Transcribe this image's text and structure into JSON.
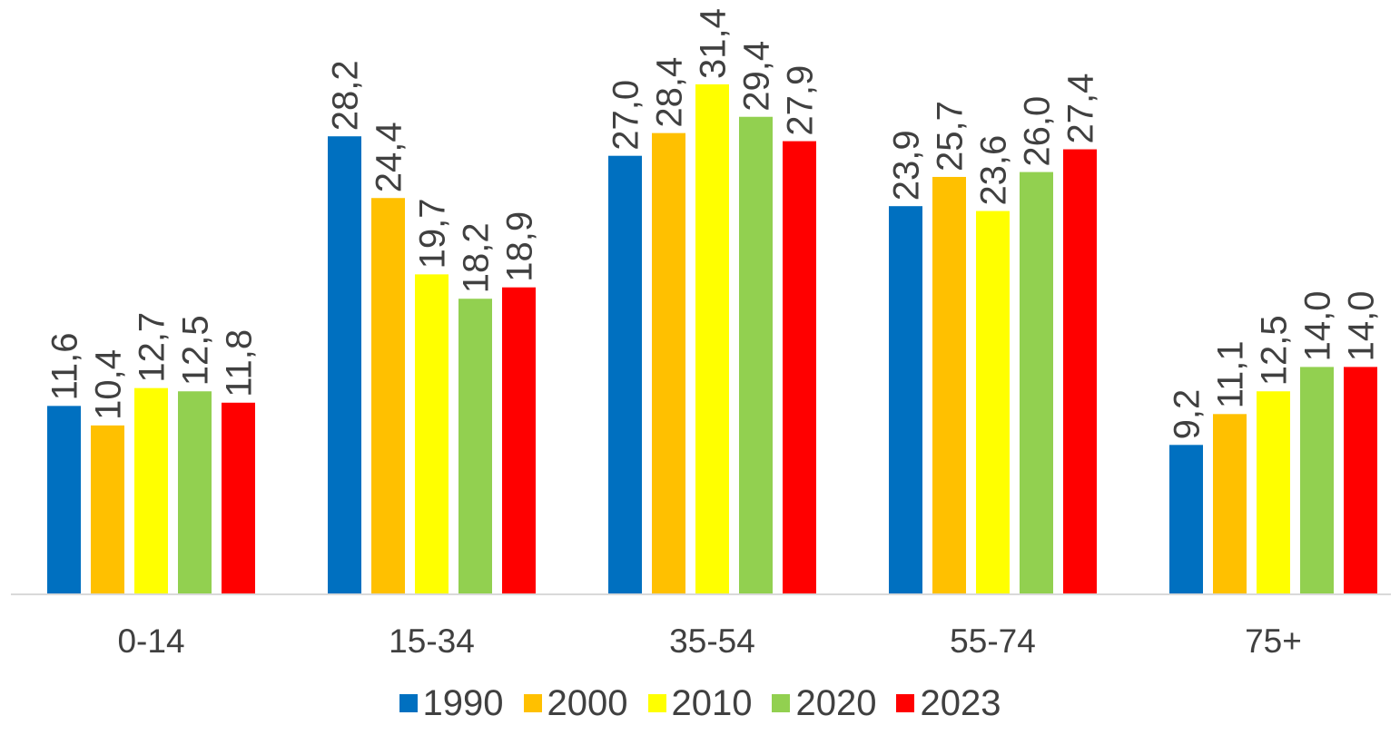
{
  "chart_data": {
    "type": "bar",
    "categories": [
      "0-14",
      "15-34",
      "35-54",
      "55-74",
      "75+"
    ],
    "series": [
      {
        "name": "1990",
        "color": "#0070C0",
        "values": [
          11.6,
          28.2,
          27.0,
          23.9,
          9.2
        ],
        "labels": [
          "11,6",
          "28,2",
          "27,0",
          "23,9",
          "9,2"
        ]
      },
      {
        "name": "2000",
        "color": "#FFC000",
        "values": [
          10.4,
          24.4,
          28.4,
          25.7,
          11.1
        ],
        "labels": [
          "10,4",
          "24,4",
          "28,4",
          "25,7",
          "11,1"
        ]
      },
      {
        "name": "2010",
        "color": "#FFFF00",
        "values": [
          12.7,
          19.7,
          31.4,
          23.6,
          12.5
        ],
        "labels": [
          "12,7",
          "19,7",
          "31,4",
          "23,6",
          "12,5"
        ]
      },
      {
        "name": "2020",
        "color": "#92D050",
        "values": [
          12.5,
          18.2,
          29.4,
          26.0,
          14.0
        ],
        "labels": [
          "12,5",
          "18,2",
          "29,4",
          "26,0",
          "14,0"
        ]
      },
      {
        "name": "2023",
        "color": "#FF0000",
        "values": [
          11.8,
          18.9,
          27.9,
          27.4,
          14.0
        ],
        "labels": [
          "11,8",
          "18,9",
          "27,9",
          "27,4",
          "14,0"
        ]
      }
    ],
    "title": "",
    "xlabel": "",
    "ylabel": "",
    "ylim": [
      0,
      36
    ],
    "grid": false,
    "legend_position": "bottom",
    "axis_color": "#D9D9D9",
    "text_color": "#404040"
  }
}
